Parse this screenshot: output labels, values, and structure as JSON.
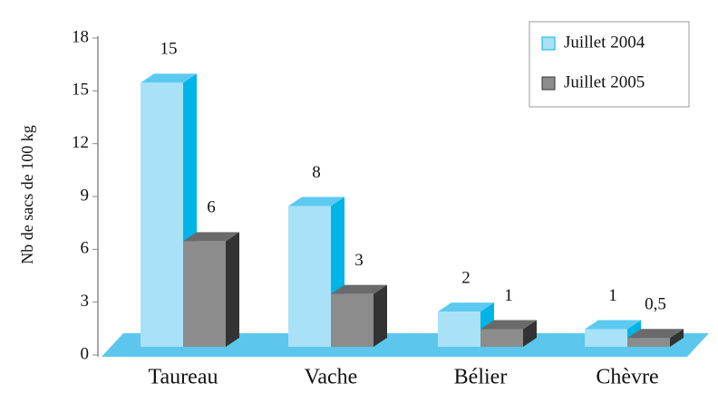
{
  "chart_data": {
    "type": "bar3d",
    "y_label": "Nb de sacs de 100 kg",
    "categories": [
      "Taureau",
      "Vache",
      "Bélier",
      "Chèvre"
    ],
    "series": [
      {
        "name": "Juillet 2004",
        "color": "#a9e1f7",
        "values": [
          15,
          8,
          2,
          1
        ]
      },
      {
        "name": "Juillet 2005",
        "color": "#8c8c8c",
        "values": [
          6,
          3,
          1,
          0.5
        ],
        "value_labels": [
          "6",
          "3",
          "1",
          "0,5"
        ]
      }
    ],
    "ylim": [
      0,
      18
    ],
    "yticks": [
      0,
      3,
      6,
      9,
      12,
      15,
      18
    ],
    "legend": "top-right"
  }
}
